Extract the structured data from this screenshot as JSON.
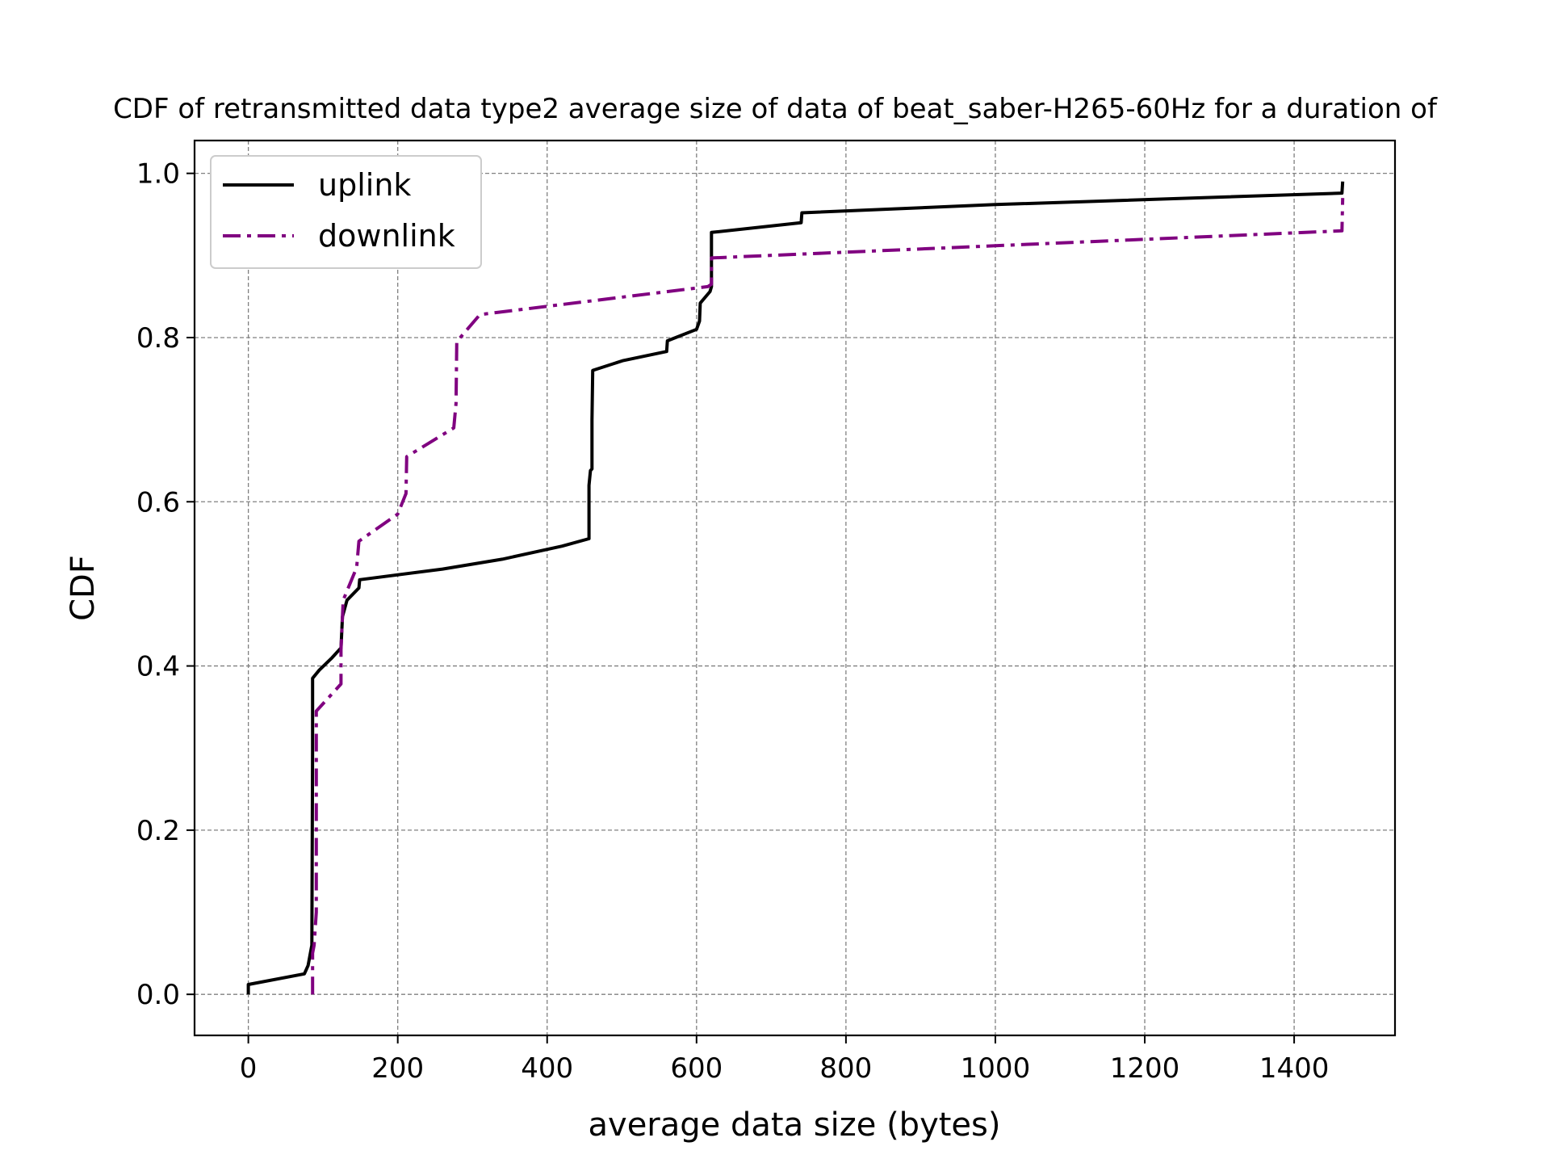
{
  "chart_data": {
    "type": "line",
    "title": "CDF of retransmitted data type2 average size of data of beat_saber-H265-60Hz for a duration of",
    "xlabel": "average data size (bytes)",
    "ylabel": "CDF",
    "xlim": [
      -72,
      1535
    ],
    "ylim": [
      -0.05,
      1.04
    ],
    "x_ticks": [
      0,
      200,
      400,
      600,
      800,
      1000,
      1200,
      1400
    ],
    "x_tick_labels": [
      "0",
      "200",
      "400",
      "600",
      "800",
      "1000",
      "1200",
      "1400"
    ],
    "y_ticks": [
      0.0,
      0.2,
      0.4,
      0.6,
      0.8,
      1.0
    ],
    "y_tick_labels": [
      "0.0",
      "0.2",
      "0.4",
      "0.6",
      "0.8",
      "1.0"
    ],
    "grid": true,
    "legend_position": "top-left",
    "series": [
      {
        "name": "uplink",
        "color": "#000000",
        "style": "solid",
        "points": [
          [
            0,
            0.0
          ],
          [
            0,
            0.012
          ],
          [
            75,
            0.025
          ],
          [
            80,
            0.035
          ],
          [
            85,
            0.06
          ],
          [
            86,
            0.3
          ],
          [
            86,
            0.385
          ],
          [
            95,
            0.395
          ],
          [
            112,
            0.41
          ],
          [
            124,
            0.422
          ],
          [
            126,
            0.46
          ],
          [
            132,
            0.48
          ],
          [
            148,
            0.495
          ],
          [
            149,
            0.505
          ],
          [
            260,
            0.518
          ],
          [
            340,
            0.53
          ],
          [
            420,
            0.546
          ],
          [
            456,
            0.555
          ],
          [
            456,
            0.62
          ],
          [
            458,
            0.638
          ],
          [
            460,
            0.64
          ],
          [
            460,
            0.7
          ],
          [
            461,
            0.76
          ],
          [
            502,
            0.772
          ],
          [
            560,
            0.783
          ],
          [
            561,
            0.796
          ],
          [
            600,
            0.81
          ],
          [
            604,
            0.82
          ],
          [
            605,
            0.842
          ],
          [
            618,
            0.856
          ],
          [
            620,
            0.862
          ],
          [
            620,
            0.928
          ],
          [
            740,
            0.94
          ],
          [
            741,
            0.952
          ],
          [
            1000,
            0.962
          ],
          [
            1464,
            0.976
          ],
          [
            1465,
            0.99
          ]
        ]
      },
      {
        "name": "downlink",
        "color": "#800080",
        "style": "dashdot",
        "points": [
          [
            86,
            0.0
          ],
          [
            86,
            0.05
          ],
          [
            88,
            0.06
          ],
          [
            91,
            0.1
          ],
          [
            91,
            0.345
          ],
          [
            124,
            0.378
          ],
          [
            124,
            0.42
          ],
          [
            127,
            0.48
          ],
          [
            145,
            0.52
          ],
          [
            148,
            0.552
          ],
          [
            200,
            0.585
          ],
          [
            211,
            0.61
          ],
          [
            212,
            0.655
          ],
          [
            275,
            0.69
          ],
          [
            278,
            0.72
          ],
          [
            279,
            0.795
          ],
          [
            310,
            0.828
          ],
          [
            615,
            0.862
          ],
          [
            620,
            0.865
          ],
          [
            620,
            0.897
          ],
          [
            1464,
            0.93
          ],
          [
            1465,
            0.97
          ]
        ]
      }
    ]
  }
}
